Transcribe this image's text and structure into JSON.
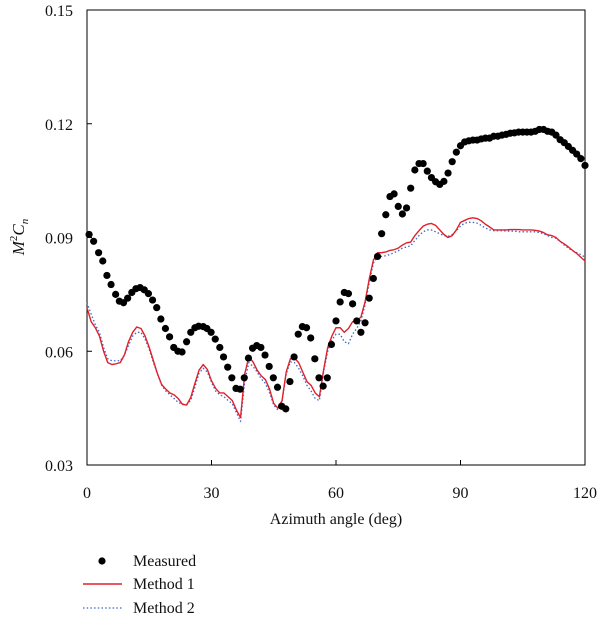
{
  "chart_data": {
    "type": "line",
    "xlabel": "Azimuth angle (deg)",
    "ylabel": {
      "base": "M",
      "sup": "2",
      "mid": "C",
      "sub": "n"
    },
    "xlim": [
      0,
      120
    ],
    "ylim": [
      0.03,
      0.15
    ],
    "xticks": [
      0,
      30,
      60,
      90,
      120
    ],
    "yticks": [
      0.03,
      0.06,
      0.09,
      0.12,
      0.15
    ],
    "xtick_labels": [
      "0",
      "30",
      "60",
      "90",
      "120"
    ],
    "ytick_labels": [
      "0.03",
      "0.06",
      "0.09",
      "0.12",
      "0.15"
    ],
    "grid": false,
    "legend_position": "below",
    "series": [
      {
        "name": "Measured",
        "style": "markers",
        "color": "#000000",
        "x": [
          0.5,
          1.6,
          2.8,
          3.8,
          4.8,
          5.8,
          6.9,
          7.8,
          8.8,
          9.8,
          10.8,
          11.8,
          12.8,
          13.8,
          14.8,
          15.8,
          16.8,
          17.8,
          18.9,
          19.9,
          20.9,
          21.9,
          22.9,
          24.0,
          25.0,
          26.0,
          26.9,
          28.0,
          28.9,
          29.9,
          30.9,
          32.0,
          32.9,
          33.9,
          34.9,
          35.9,
          36.9,
          37.9,
          38.9,
          39.9,
          40.9,
          41.9,
          42.9,
          43.9,
          44.9,
          45.9,
          46.9,
          47.9,
          48.9,
          49.9,
          50.9,
          51.9,
          52.9,
          53.9,
          54.9,
          55.9,
          56.9,
          57.9,
          58.9,
          60.0,
          61.0,
          62.0,
          63.0,
          64.0,
          65.0,
          66.0,
          67.0,
          68.0,
          69.0,
          70.0,
          71.0,
          72.0,
          73.0,
          74.0,
          75.0,
          76.0,
          77.0,
          78.0,
          79.0,
          80.0,
          81.0,
          82.0,
          83.0,
          84.0,
          85.0,
          86.0,
          87.0,
          88.0,
          89.0,
          90.0,
          91.0,
          92.0,
          93.0,
          94.0,
          95.0,
          96.0,
          97.0,
          98.0,
          99.0,
          100.0,
          101.0,
          102.0,
          103.0,
          104.0,
          105.0,
          106.0,
          107.0,
          108.0,
          109.0,
          110.0,
          111.0,
          112.0,
          113.0,
          114.0,
          115.0,
          116.0,
          117.0,
          118.0,
          119.0,
          120.0
        ],
        "y": [
          0.0908,
          0.089,
          0.086,
          0.0838,
          0.08,
          0.0776,
          0.075,
          0.0732,
          0.0728,
          0.074,
          0.0755,
          0.0765,
          0.0768,
          0.0762,
          0.0752,
          0.0735,
          0.0715,
          0.0685,
          0.066,
          0.0638,
          0.061,
          0.06,
          0.0598,
          0.0625,
          0.065,
          0.0662,
          0.0666,
          0.0665,
          0.066,
          0.065,
          0.0632,
          0.061,
          0.0585,
          0.0558,
          0.053,
          0.0502,
          0.05,
          0.053,
          0.0582,
          0.0608,
          0.0615,
          0.061,
          0.059,
          0.056,
          0.053,
          0.0505,
          0.0455,
          0.0448,
          0.052,
          0.0585,
          0.0645,
          0.0665,
          0.0662,
          0.0635,
          0.058,
          0.053,
          0.0508,
          0.053,
          0.0618,
          0.068,
          0.073,
          0.0755,
          0.0752,
          0.0725,
          0.068,
          0.065,
          0.0675,
          0.074,
          0.0792,
          0.085,
          0.091,
          0.096,
          0.1008,
          0.1015,
          0.0982,
          0.0962,
          0.0978,
          0.103,
          0.1078,
          0.1095,
          0.1095,
          0.1075,
          0.1058,
          0.1047,
          0.104,
          0.1048,
          0.107,
          0.11,
          0.1125,
          0.1142,
          0.1152,
          0.1155,
          0.1157,
          0.1157,
          0.116,
          0.1162,
          0.1162,
          0.1167,
          0.1167,
          0.117,
          0.1172,
          0.1175,
          0.1176,
          0.1178,
          0.1178,
          0.1178,
          0.1178,
          0.118,
          0.1185,
          0.1185,
          0.118,
          0.1178,
          0.117,
          0.1158,
          0.115,
          0.114,
          0.113,
          0.112,
          0.1108,
          0.109
        ]
      },
      {
        "name": "Method 1",
        "style": "solid",
        "color": "#e0202a",
        "x": [
          0,
          1,
          2,
          3,
          4,
          5,
          6,
          7,
          8,
          9,
          10,
          11,
          12,
          13,
          14,
          15,
          16,
          17,
          18,
          19,
          20,
          21,
          22,
          23,
          24,
          25,
          26,
          27,
          28,
          29,
          30,
          31,
          32,
          33,
          34,
          35,
          36,
          37,
          38,
          39,
          40,
          41,
          42,
          43,
          44,
          45,
          46,
          47,
          48,
          49,
          50,
          51,
          52,
          53,
          54,
          55,
          56,
          57,
          58,
          59,
          60,
          61,
          62,
          63,
          64,
          65,
          66,
          67,
          68,
          69,
          70,
          71,
          72,
          73,
          74,
          75,
          76,
          77,
          78,
          79,
          80,
          81,
          82,
          83,
          84,
          85,
          86,
          87,
          88,
          89,
          90,
          91,
          92,
          93,
          94,
          95,
          96,
          97,
          98,
          99,
          100,
          101,
          102,
          103,
          104,
          105,
          106,
          107,
          108,
          109,
          110,
          111,
          112,
          113,
          114,
          115,
          116,
          117,
          118,
          119,
          120
        ],
        "y": [
          0.0715,
          0.0678,
          0.0662,
          0.064,
          0.06,
          0.057,
          0.0565,
          0.0567,
          0.057,
          0.059,
          0.0625,
          0.065,
          0.0664,
          0.066,
          0.064,
          0.061,
          0.0575,
          0.054,
          0.0512,
          0.05,
          0.049,
          0.0485,
          0.0475,
          0.046,
          0.0458,
          0.0478,
          0.0515,
          0.055,
          0.0565,
          0.0552,
          0.0522,
          0.0502,
          0.049,
          0.049,
          0.048,
          0.047,
          0.0445,
          0.0425,
          0.054,
          0.0585,
          0.0572,
          0.055,
          0.0535,
          0.0525,
          0.05,
          0.0462,
          0.045,
          0.047,
          0.0545,
          0.058,
          0.0582,
          0.057,
          0.0545,
          0.052,
          0.051,
          0.049,
          0.048,
          0.055,
          0.061,
          0.064,
          0.0662,
          0.0662,
          0.065,
          0.066,
          0.0678,
          0.068,
          0.069,
          0.073,
          0.079,
          0.084,
          0.086,
          0.086,
          0.0862,
          0.0866,
          0.0868,
          0.0872,
          0.088,
          0.0886,
          0.0888,
          0.0905,
          0.0918,
          0.093,
          0.0935,
          0.0937,
          0.0932,
          0.092,
          0.0908,
          0.09,
          0.0905,
          0.092,
          0.094,
          0.0945,
          0.095,
          0.0952,
          0.095,
          0.0944,
          0.0935,
          0.0928,
          0.092,
          0.092,
          0.092,
          0.092,
          0.0921,
          0.0921,
          0.0921,
          0.092,
          0.092,
          0.092,
          0.0919,
          0.0917,
          0.0913,
          0.0907,
          0.0905,
          0.09,
          0.089,
          0.0883,
          0.0875,
          0.0866,
          0.0858,
          0.0848,
          0.0838
        ]
      },
      {
        "name": "Method 2",
        "style": "dotted",
        "color": "#3a67c8",
        "x": [
          0,
          1,
          2,
          3,
          4,
          5,
          6,
          7,
          8,
          9,
          10,
          11,
          12,
          13,
          14,
          15,
          16,
          17,
          18,
          19,
          20,
          21,
          22,
          23,
          24,
          25,
          26,
          27,
          28,
          29,
          30,
          31,
          32,
          33,
          34,
          35,
          36,
          37,
          38,
          39,
          40,
          41,
          42,
          43,
          44,
          45,
          46,
          47,
          48,
          49,
          50,
          51,
          52,
          53,
          54,
          55,
          56,
          57,
          58,
          59,
          60,
          61,
          62,
          63,
          64,
          65,
          66,
          67,
          68,
          69,
          70,
          71,
          72,
          73,
          74,
          75,
          76,
          77,
          78,
          79,
          80,
          81,
          82,
          83,
          84,
          85,
          86,
          87,
          88,
          89,
          90,
          91,
          92,
          93,
          94,
          95,
          96,
          97,
          98,
          99,
          100,
          101,
          102,
          103,
          104,
          105,
          106,
          107,
          108,
          109,
          110,
          111,
          112,
          113,
          114,
          115,
          116,
          117,
          118,
          119,
          120
        ],
        "y": [
          0.0728,
          0.0698,
          0.067,
          0.065,
          0.061,
          0.058,
          0.0575,
          0.0575,
          0.0575,
          0.059,
          0.0615,
          0.064,
          0.065,
          0.065,
          0.0632,
          0.0605,
          0.057,
          0.054,
          0.051,
          0.0495,
          0.0485,
          0.0475,
          0.0465,
          0.046,
          0.046,
          0.047,
          0.0505,
          0.0542,
          0.0555,
          0.0545,
          0.0518,
          0.0495,
          0.0485,
          0.048,
          0.047,
          0.0462,
          0.0438,
          0.0415,
          0.052,
          0.057,
          0.056,
          0.0545,
          0.0527,
          0.0515,
          0.049,
          0.0458,
          0.0445,
          0.0468,
          0.054,
          0.0572,
          0.057,
          0.0555,
          0.0535,
          0.051,
          0.0495,
          0.0475,
          0.047,
          0.0545,
          0.06,
          0.063,
          0.0645,
          0.0645,
          0.0625,
          0.062,
          0.0645,
          0.066,
          0.068,
          0.0722,
          0.078,
          0.0832,
          0.085,
          0.085,
          0.0852,
          0.0855,
          0.086,
          0.0865,
          0.0872,
          0.0875,
          0.0878,
          0.0892,
          0.0905,
          0.0915,
          0.092,
          0.092,
          0.0915,
          0.091,
          0.0905,
          0.0903,
          0.0908,
          0.0918,
          0.093,
          0.0938,
          0.094,
          0.094,
          0.0938,
          0.0932,
          0.0925,
          0.092,
          0.0918,
          0.0918,
          0.0918,
          0.0917,
          0.0917,
          0.0917,
          0.0915,
          0.0915,
          0.0915,
          0.0915,
          0.0915,
          0.0913,
          0.091,
          0.0905,
          0.09,
          0.0898,
          0.089,
          0.088,
          0.0872,
          0.0865,
          0.086,
          0.0855,
          0.0848
        ]
      }
    ]
  }
}
